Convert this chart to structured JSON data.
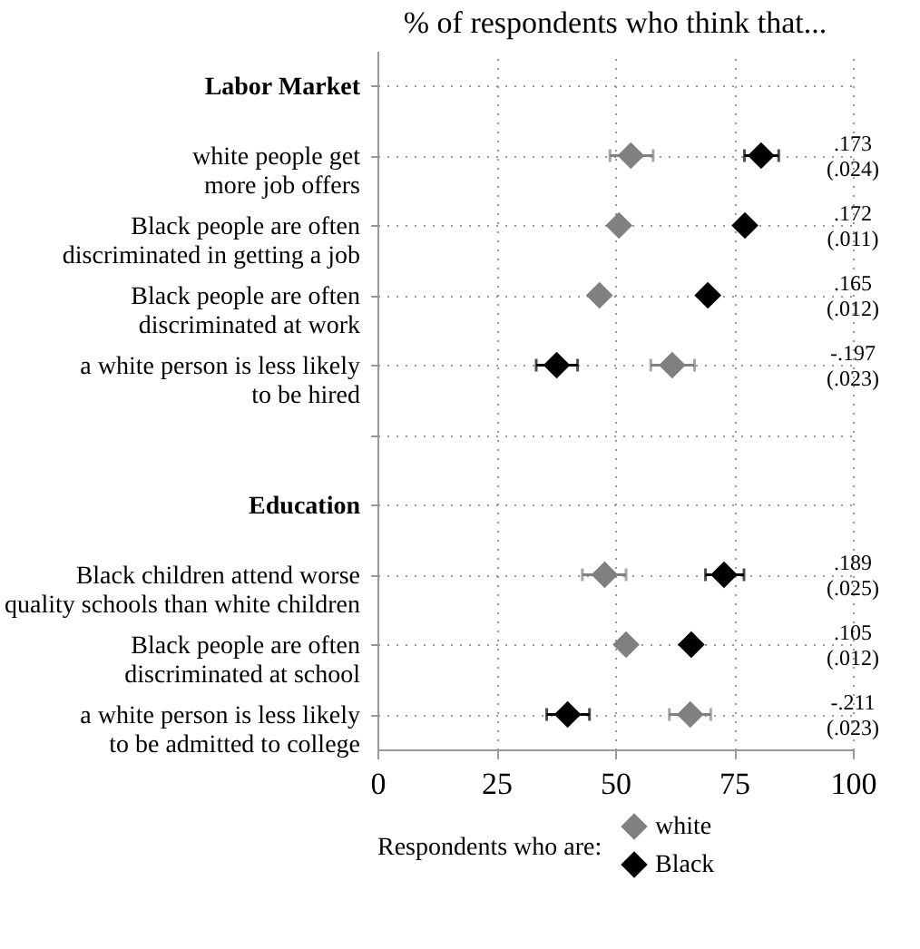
{
  "chart_data": {
    "type": "scatter",
    "orientation": "horizontal",
    "title": "% of respondents who think that...",
    "categories": [
      "Labor Market",
      "white people get\nmore job offers",
      "Black people are often\ndiscriminated in getting a job",
      "Black people are often\ndiscriminated at work",
      "a white person is less likely\nto be hired",
      null,
      "Education",
      "Black children attend worse\nquality schools than white children",
      "Black people are often\ndiscriminated at school",
      "a white person is less likely\nto be admitted to college"
    ],
    "series": [
      {
        "name": "white",
        "color": "#808080",
        "values": [
          null,
          53.3,
          50.8,
          46.7,
          62.0,
          null,
          null,
          47.8,
          52.3,
          65.8
        ],
        "errors": [
          null,
          [
            48.9,
            58.0
          ],
          null,
          null,
          [
            57.5,
            66.7
          ],
          null,
          null,
          [
            43.1,
            52.3
          ],
          null,
          [
            61.4,
            70.1
          ]
        ]
      },
      {
        "name": "Black",
        "color": "#000000",
        "values": [
          null,
          80.7,
          77.3,
          69.5,
          37.7,
          null,
          null,
          72.9,
          66.0,
          40.0
        ],
        "errors": [
          null,
          [
            77.2,
            84.4
          ],
          null,
          null,
          [
            33.4,
            42.1
          ],
          null,
          null,
          [
            69.0,
            77.1
          ],
          null,
          [
            35.6,
            44.6
          ]
        ]
      }
    ],
    "xlim": [
      0,
      100
    ],
    "xticks": [
      0,
      25,
      50,
      75,
      100
    ],
    "legend_title": "Respondents who are:",
    "legend": "bottom",
    "marker": "diamond",
    "grid": true,
    "annotations": [
      ".173\n(.024)",
      ".172\n(.011)",
      ".165\n(.012)",
      "-.197\n(.023)",
      ".189\n(.025)",
      ".105\n(.012)",
      "-.211\n(.023)"
    ]
  }
}
